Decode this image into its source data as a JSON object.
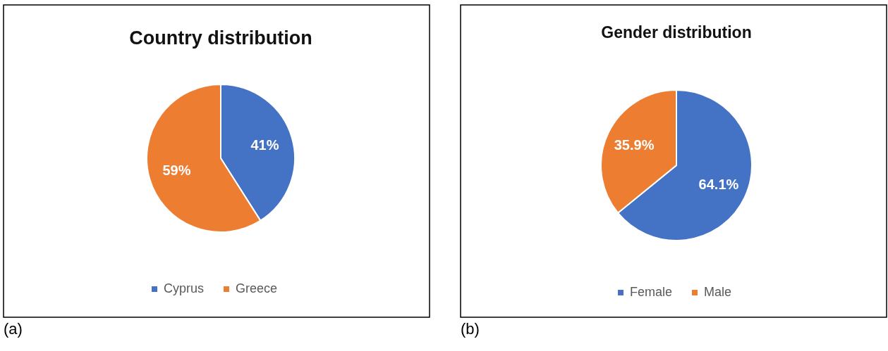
{
  "chart_data": [
    {
      "type": "pie",
      "title": "Country distribution",
      "categories": [
        "Cyprus",
        "Greece"
      ],
      "values": [
        41,
        59
      ],
      "colors": [
        "#4472c4",
        "#ed7d31"
      ],
      "value_labels": [
        "41%",
        "59%"
      ],
      "legend": "bottom",
      "annotations": [
        "(a)"
      ]
    },
    {
      "type": "pie",
      "title": "Gender distribution",
      "categories": [
        "Female",
        "Male"
      ],
      "values": [
        64.1,
        35.9
      ],
      "colors": [
        "#4472c4",
        "#ed7d31"
      ],
      "value_labels": [
        "64.1%",
        "35.9%"
      ],
      "legend": "bottom",
      "annotations": [
        "(b)"
      ]
    }
  ]
}
